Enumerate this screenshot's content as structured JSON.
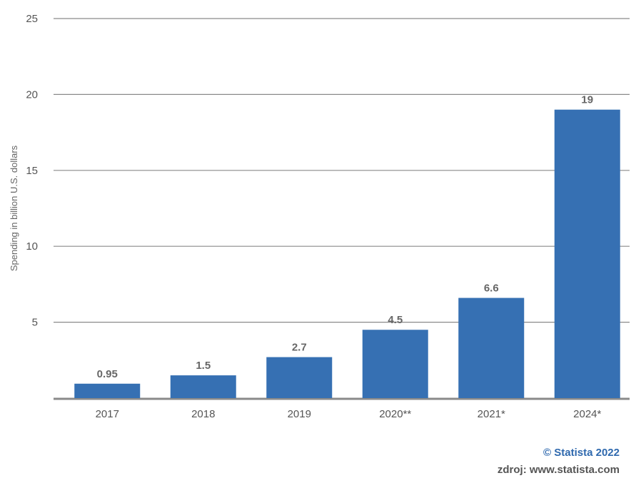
{
  "chart_data": {
    "type": "bar",
    "categories": [
      "2017",
      "2018",
      "2019",
      "2020**",
      "2021*",
      "2024*"
    ],
    "values": [
      0.95,
      1.5,
      2.7,
      4.5,
      6.6,
      19
    ],
    "value_labels": [
      "0.95",
      "1.5",
      "2.7",
      "4.5",
      "6.6",
      "19"
    ],
    "ylabel": "Spending in billion U.S. dollars",
    "ylim": [
      0,
      25
    ],
    "yticks": [
      5,
      10,
      15,
      20,
      25
    ],
    "grid": true,
    "bar_color": "#3670b3"
  },
  "footer": {
    "copyright": "© Statista 2022",
    "source": "zdroj: www.statista.com"
  }
}
